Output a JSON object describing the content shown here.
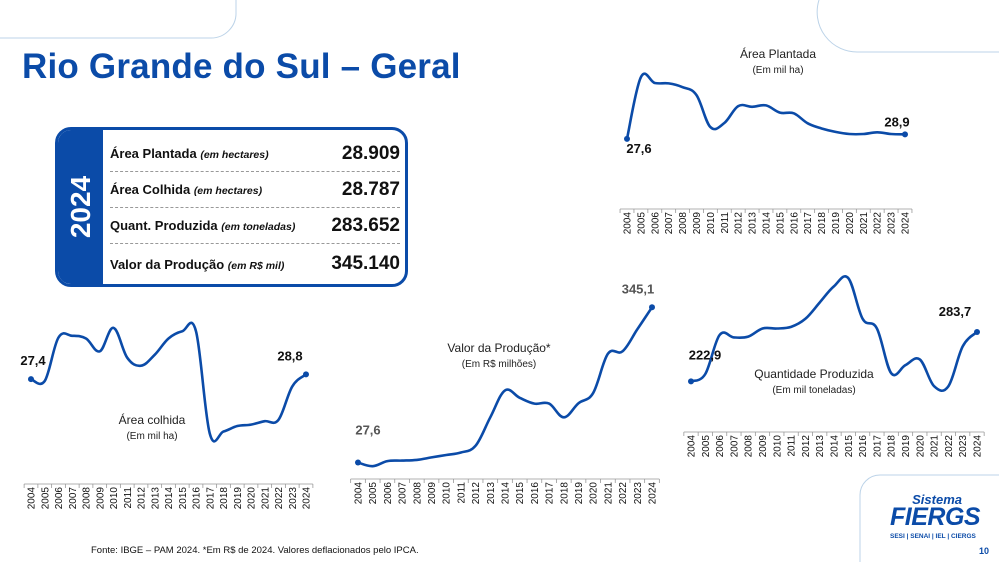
{
  "title": "Rio Grande do Sul – Geral",
  "summary": {
    "year": "2024",
    "rows": [
      {
        "label": "Área Plantada",
        "unit": "(em hectares)",
        "value": "28.909"
      },
      {
        "label": "Área Colhida",
        "unit": "(em hectares)",
        "value": "28.787"
      },
      {
        "label": "Quant. Produzida",
        "unit": "(em toneladas)",
        "value": "283.652"
      },
      {
        "label": "Valor da Produção",
        "unit": "(em R$ mil)",
        "value": "345.140"
      }
    ]
  },
  "chart_data": [
    {
      "type": "line",
      "title": "Área Plantada",
      "subtitle": "(Em mil ha)",
      "x": [
        "2004",
        "2005",
        "2006",
        "2007",
        "2008",
        "2009",
        "2010",
        "2011",
        "2012",
        "2013",
        "2014",
        "2015",
        "2016",
        "2017",
        "2018",
        "2019",
        "2020",
        "2021",
        "2022",
        "2023",
        "2024"
      ],
      "values": [
        27.6,
        45.5,
        43.8,
        43.7,
        42.6,
        40.3,
        31.0,
        32.2,
        37.1,
        36.9,
        37.3,
        35.2,
        35.0,
        32.1,
        30.6,
        29.6,
        29.0,
        29.0,
        29.5,
        29.0,
        28.9
      ],
      "labels": [
        {
          "index": 0,
          "text": "27,6"
        },
        {
          "index": 20,
          "text": "28,9"
        }
      ],
      "color": "#0b4ba8"
    },
    {
      "type": "line",
      "title": "Área colhida",
      "subtitle": "(Em mil ha)",
      "x": [
        "2004",
        "2005",
        "2006",
        "2007",
        "2008",
        "2009",
        "2010",
        "2011",
        "2012",
        "2013",
        "2014",
        "2015",
        "2016",
        "2017",
        "2018",
        "2019",
        "2020",
        "2021",
        "2022",
        "2023",
        "2024"
      ],
      "values": [
        27.4,
        26.9,
        39.5,
        40.0,
        39.2,
        35.5,
        42.3,
        33.6,
        31.3,
        34.5,
        39.2,
        41.3,
        41.3,
        11.6,
        12.2,
        13.8,
        14.2,
        15.2,
        15.6,
        25.3,
        28.8
      ],
      "labels": [
        {
          "index": 0,
          "text": "27,4"
        },
        {
          "index": 20,
          "text": "28,8"
        }
      ],
      "color": "#0b4ba8"
    },
    {
      "type": "line",
      "title": "Valor da Produção*",
      "subtitle": "(Em R$ milhões)",
      "x": [
        "2004",
        "2005",
        "2006",
        "2007",
        "2008",
        "2009",
        "2010",
        "2011",
        "2012",
        "2013",
        "2014",
        "2015",
        "2016",
        "2017",
        "2018",
        "2019",
        "2020",
        "2021",
        "2022",
        "2023",
        "2024"
      ],
      "values": [
        27.6,
        20.0,
        30.5,
        31.5,
        33.0,
        38.0,
        43.0,
        48.0,
        62.0,
        120.0,
        175.0,
        160.0,
        148.0,
        148.0,
        120.0,
        149.0,
        170.0,
        250.0,
        255.0,
        300.0,
        345.1
      ],
      "labels": [
        {
          "index": 0,
          "text": "27,6"
        },
        {
          "index": 20,
          "text": "345,1"
        }
      ],
      "color": "#0b4ba8"
    },
    {
      "type": "line",
      "title": "Quantidade Produzida",
      "subtitle": "(Em mil toneladas)",
      "x": [
        "2004",
        "2005",
        "2006",
        "2007",
        "2008",
        "2009",
        "2010",
        "2011",
        "2012",
        "2013",
        "2014",
        "2015",
        "2016",
        "2017",
        "2018",
        "2019",
        "2020",
        "2021",
        "2022",
        "2023",
        "2024"
      ],
      "values": [
        222.9,
        232.0,
        280.0,
        277.0,
        278.0,
        288.0,
        288.0,
        290.0,
        300.0,
        320.0,
        340.0,
        350.0,
        300.0,
        288.0,
        233.0,
        243.0,
        250.0,
        217.0,
        217.0,
        266.0,
        283.7
      ],
      "labels": [
        {
          "index": 0,
          "text": "222,9"
        },
        {
          "index": 20,
          "text": "283,7"
        }
      ],
      "color": "#0b4ba8"
    }
  ],
  "footer": {
    "source": "Fonte: IBGE – PAM 2024. *Em R$ de 2024. Valores deflacionados pelo IPCA.",
    "page": "10"
  },
  "logo": {
    "sistema": "Sistema",
    "fiergs": "FIERGS",
    "sub": "SESI | SENAI | IEL | CIERGS"
  }
}
